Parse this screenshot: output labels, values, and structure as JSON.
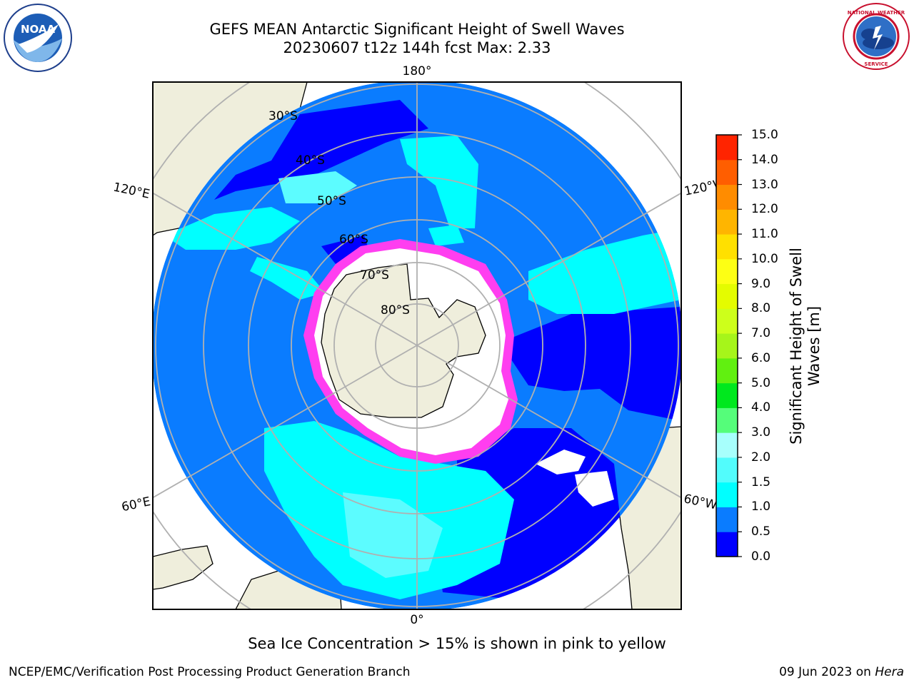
{
  "title": {
    "line1": "GEFS MEAN Antarctic Significant Height of Swell Waves",
    "line2": "20230607 t12z 144h fcst   Max: 2.33"
  },
  "logos": {
    "left": {
      "icon": "noaa-logo",
      "text": "NOAA"
    },
    "right": {
      "icon": "nws-logo",
      "text": "NATIONAL WEATHER SERVICE"
    }
  },
  "map": {
    "projection": "south-polar-stereographic",
    "longitude_labels": {
      "top": "180°",
      "bottom": "0°",
      "left_upper": "120°E",
      "left_lower": "60°E",
      "right_upper": "120°W",
      "right_lower": "60°W"
    },
    "latitude_labels": [
      "30°S",
      "40°S",
      "50°S",
      "60°S",
      "70°S",
      "80°S"
    ],
    "colors": {
      "land": "#efeedc",
      "swell_0_0_5": "#0000ff",
      "swell_0_5_1_0": "#0a7cff",
      "swell_1_0_1_5": "#00ffff",
      "swell_1_5_2_0": "#5cfcff",
      "sea_ice": "#ff3ef0",
      "ice_interior": "#ffffff",
      "grid": "#b0b0b0"
    }
  },
  "colorbar": {
    "label": "Significant Height of Swell Waves [m]",
    "ticks": [
      "0.0",
      "0.5",
      "1.0",
      "1.5",
      "2.0",
      "3.0",
      "4.0",
      "5.0",
      "6.0",
      "7.0",
      "8.0",
      "9.0",
      "10.0",
      "11.0",
      "12.0",
      "13.0",
      "14.0",
      "15.0"
    ],
    "colors": [
      "#0000ff",
      "#0a7cff",
      "#00ffff",
      "#52fcfc",
      "#a7fffc",
      "#55fd7a",
      "#00e81e",
      "#61f010",
      "#a6f51a",
      "#cdff1b",
      "#e4fc00",
      "#fdff14",
      "#ffe000",
      "#ffb500",
      "#ff8c00",
      "#ff5e00",
      "#ff2400"
    ]
  },
  "caption": "Sea Ice Concentration > 15% is shown in pink to yellow",
  "footer": {
    "left": "NCEP/EMC/Verification Post Processing Product Generation Branch",
    "right_date": "09 Jun 2023 on ",
    "right_host": "Hera"
  }
}
